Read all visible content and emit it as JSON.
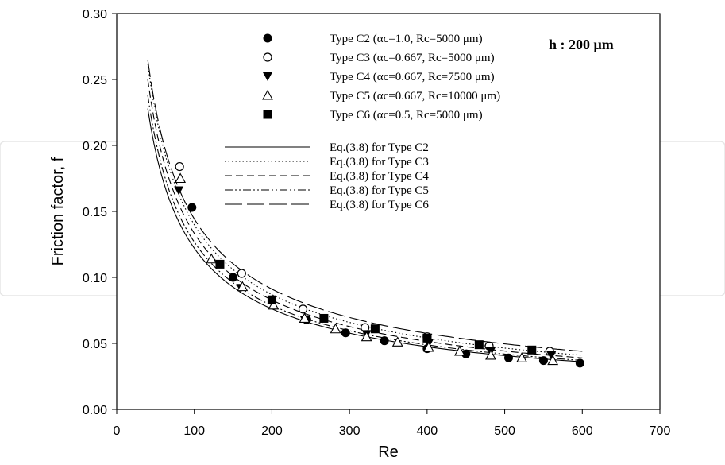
{
  "chart_data": {
    "type": "scatter",
    "title": "",
    "xlabel": "Re",
    "ylabel": "Friction factor, f",
    "xlim": [
      0,
      700
    ],
    "ylim": [
      0.0,
      0.3
    ],
    "xticks": [
      "0",
      "100",
      "200",
      "300",
      "400",
      "500",
      "600",
      "700"
    ],
    "yticks": [
      "0.00",
      "0.05",
      "0.10",
      "0.15",
      "0.20",
      "0.25",
      "0.30"
    ],
    "grid": false,
    "legend_position": "top-center",
    "annotation": "h : 200 μm",
    "series": [
      {
        "name": "Type C2 (αc=1.0, Rc=5000 μm)",
        "marker": "filled-circle",
        "x": [
          97,
          150,
          245,
          295,
          345,
          400,
          450,
          505,
          550,
          597
        ],
        "y": [
          0.153,
          0.1,
          0.068,
          0.058,
          0.052,
          0.046,
          0.042,
          0.039,
          0.037,
          0.035
        ]
      },
      {
        "name": "Type C3 (αc=0.667, Rc=5000 μm)",
        "marker": "open-circle",
        "x": [
          81,
          161,
          240,
          320,
          400,
          480,
          558
        ],
        "y": [
          0.184,
          0.103,
          0.076,
          0.062,
          0.055,
          0.048,
          0.044
        ]
      },
      {
        "name": "Type C4 (αc=0.667, Rc=7500 μm)",
        "marker": "filled-triangle-down",
        "x": [
          80,
          160,
          242,
          322,
          402,
          482,
          560
        ],
        "y": [
          0.166,
          0.092,
          0.068,
          0.057,
          0.05,
          0.044,
          0.041
        ]
      },
      {
        "name": "Type C5 (αc=0.667, Rc=10000 μm)",
        "marker": "open-triangle-up",
        "x": [
          82,
          122,
          162,
          202,
          242,
          282,
          322,
          362,
          402,
          442,
          482,
          522,
          562
        ],
        "y": [
          0.175,
          0.114,
          0.093,
          0.079,
          0.069,
          0.061,
          0.055,
          0.051,
          0.047,
          0.044,
          0.041,
          0.039,
          0.037
        ]
      },
      {
        "name": "Type C6 (αc=0.5, Rc=5000 μm)",
        "marker": "filled-square",
        "x": [
          133,
          200,
          267,
          333,
          400,
          467,
          535
        ],
        "y": [
          0.11,
          0.083,
          0.069,
          0.061,
          0.054,
          0.049,
          0.045
        ]
      }
    ],
    "curves": [
      {
        "name": "Eq.(3.8) for Type C2",
        "dash": "solid",
        "x0": 40,
        "x1": 600,
        "y_at_x0": 0.228,
        "y_at_x1": 0.036
      },
      {
        "name": "Eq.(3.8) for Type C3",
        "dash": "dotted",
        "x0": 40,
        "x1": 600,
        "y_at_x0": 0.262,
        "y_at_x1": 0.041
      },
      {
        "name": "Eq.(3.8) for Type C4",
        "dash": "dashed",
        "x0": 40,
        "x1": 600,
        "y_at_x0": 0.25,
        "y_at_x1": 0.039
      },
      {
        "name": "Eq.(3.8) for Type C5",
        "dash": "dash-dot-dot",
        "x0": 40,
        "x1": 600,
        "y_at_x0": 0.238,
        "y_at_x1": 0.037
      },
      {
        "name": "Eq.(3.8) for Type C6",
        "dash": "long-dash",
        "x0": 40,
        "x1": 600,
        "y_at_x0": 0.265,
        "y_at_x1": 0.044
      }
    ]
  }
}
